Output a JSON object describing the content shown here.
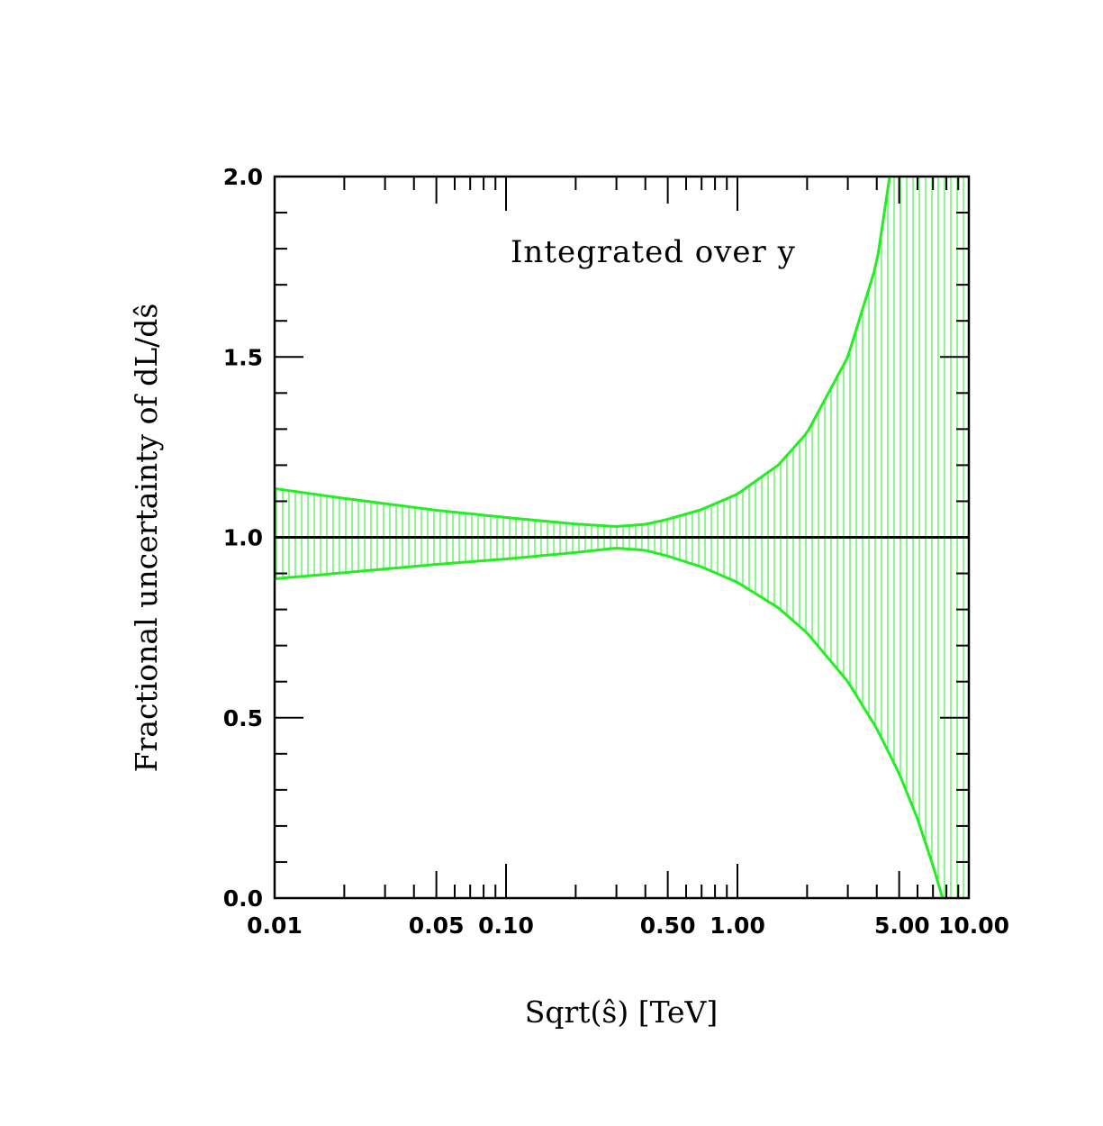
{
  "chart_data": {
    "type": "area",
    "title": "",
    "annotation": "Integrated over y",
    "xlabel": "Sqrt(ŝ) [TeV]",
    "ylabel": "Fractional uncertainty of dL/dŝ",
    "x_scale": "log",
    "xlim": [
      0.01,
      10.0
    ],
    "ylim": [
      0.0,
      2.0
    ],
    "x_tick_labels": [
      {
        "value": 0.01,
        "label": "0.01"
      },
      {
        "value": 0.05,
        "label": "0.05"
      },
      {
        "value": 0.1,
        "label": "0.10"
      },
      {
        "value": 0.5,
        "label": "0.50"
      },
      {
        "value": 1.0,
        "label": "1.00"
      },
      {
        "value": 5.0,
        "label": "5.00"
      },
      {
        "value": 10.0,
        "label": "10.00"
      }
    ],
    "y_tick_labels": [
      {
        "value": 0.0,
        "label": "0.0"
      },
      {
        "value": 0.5,
        "label": "0.5"
      },
      {
        "value": 1.0,
        "label": "1.0"
      },
      {
        "value": 1.5,
        "label": "1.5"
      },
      {
        "value": 2.0,
        "label": "2.0"
      }
    ],
    "reference_line": {
      "y": 1.0,
      "color": "#000000"
    },
    "band_color": "#22ee22",
    "band_fill": "vertical hatching",
    "series": [
      {
        "x": [
          0.01,
          0.02,
          0.05,
          0.1,
          0.2,
          0.3,
          0.4,
          0.5,
          0.7,
          1.0,
          1.5,
          2.0,
          3.0,
          4.0,
          4.55
        ],
        "values": [
          1.135,
          1.108,
          1.075,
          1.055,
          1.037,
          1.03,
          1.036,
          1.05,
          1.077,
          1.12,
          1.2,
          1.29,
          1.5,
          1.76,
          2.0
        ]
      },
      {
        "x": [
          0.01,
          0.02,
          0.05,
          0.1,
          0.2,
          0.3,
          0.4,
          0.5,
          0.7,
          1.0,
          1.5,
          2.0,
          3.0,
          4.0,
          5.0,
          6.0,
          7.0,
          7.7
        ],
        "values": [
          0.885,
          0.902,
          0.925,
          0.94,
          0.958,
          0.97,
          0.964,
          0.948,
          0.918,
          0.875,
          0.805,
          0.735,
          0.6,
          0.47,
          0.345,
          0.22,
          0.09,
          0.0
        ]
      }
    ]
  }
}
